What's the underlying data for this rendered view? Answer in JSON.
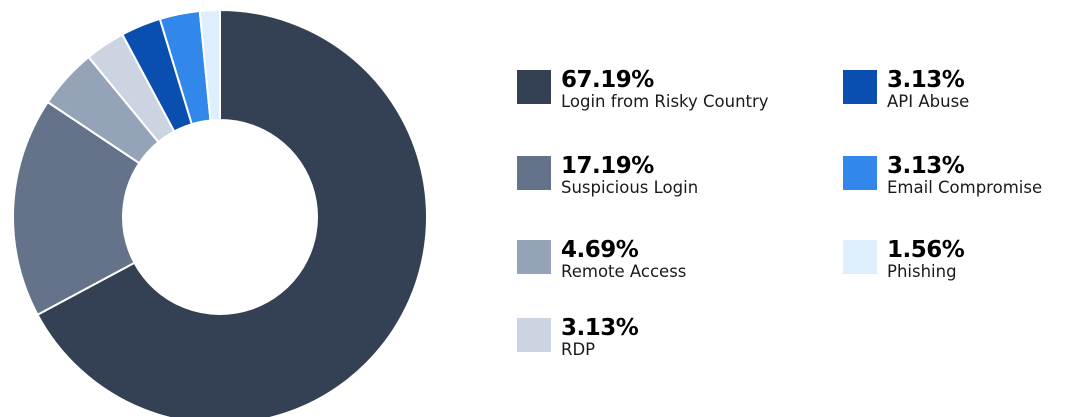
{
  "chart_data": {
    "type": "pie",
    "title": "",
    "categories": [
      "Login from Risky Country",
      "Suspicious Login",
      "Remote Access",
      "RDP",
      "API Abuse",
      "Email Compromise",
      "Phishing"
    ],
    "values": [
      67.19,
      17.19,
      4.69,
      3.13,
      3.13,
      3.13,
      1.56
    ],
    "value_labels": [
      "67.19%",
      "17.19%",
      "4.69%",
      "3.13%",
      "3.13%",
      "3.13%",
      "1.56%"
    ],
    "colors": [
      "#344154",
      "#647389",
      "#95a3b8",
      "#cbd4e0",
      "#0a4fb0",
      "#3288ea",
      "#ddeefc"
    ],
    "donut": true,
    "legend_placement": "right"
  }
}
